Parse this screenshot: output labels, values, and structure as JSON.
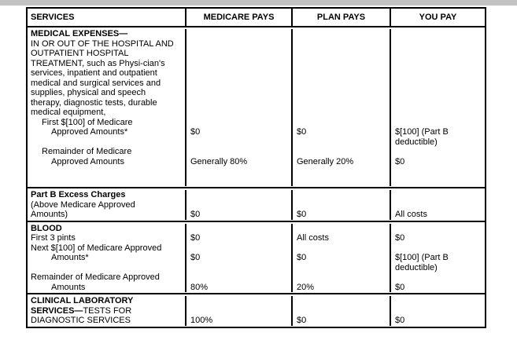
{
  "page": {
    "background": "#ffffff",
    "top_strip_color": "#c2c2c2",
    "border_color": "#000000"
  },
  "table": {
    "headers": [
      {
        "label": "SERVICES"
      },
      {
        "label": "MEDICARE PAYS"
      },
      {
        "label": "PLAN PAYS"
      },
      {
        "label": "YOU PAY"
      }
    ],
    "sections": [
      {
        "id": "medical-expenses",
        "lines": [
          {
            "service": "MEDICAL EXPENSES—",
            "bold": true
          },
          {
            "service": "IN OR OUT OF THE HOSPITAL AND"
          },
          {
            "service": "OUTPATIENT HOSPITAL"
          },
          {
            "service": "TREATMENT, such as Physi-cian's"
          },
          {
            "service": "services, inpatient and outpatient"
          },
          {
            "service": "medical and surgical services and"
          },
          {
            "service": "supplies, physical and speech"
          },
          {
            "service": "therapy, diagnostic tests, durable"
          },
          {
            "service": "medical equipment,"
          },
          {
            "service": "First $[100] of Medicare",
            "indent": 1
          },
          {
            "service": "Approved Amounts*",
            "indent": 2,
            "medicare": "$0",
            "plan": "$0",
            "you": "$[100] (Part B"
          },
          {
            "service": "",
            "you": "deductible)"
          },
          {
            "service": "Remainder of Medicare",
            "indent": 1
          },
          {
            "service": "Approved Amounts",
            "indent": 2,
            "medicare": "Generally 80%",
            "plan": "Generally 20%",
            "you": "$0"
          },
          {
            "service": ""
          },
          {
            "service": ""
          }
        ]
      },
      {
        "id": "part-b-excess-charges",
        "lines": [
          {
            "service": "Part B Excess Charges",
            "bold": true
          },
          {
            "service": "(Above Medicare Approved"
          },
          {
            "service": "Amounts)",
            "medicare": "$0",
            "plan": "$0",
            "you": "All costs"
          }
        ]
      },
      {
        "id": "blood",
        "lines": [
          {
            "service": "BLOOD",
            "bold": true
          },
          {
            "service": "First 3 pints",
            "medicare": "$0",
            "plan": "All costs",
            "you": "$0"
          },
          {
            "service": "Next $[100] of Medicare Approved"
          },
          {
            "service": "Amounts*",
            "indent": 2,
            "medicare": "$0",
            "plan": "$0",
            "you": "$[100] (Part B"
          },
          {
            "service": "",
            "you": "deductible)"
          },
          {
            "service": "Remainder of Medicare Approved"
          },
          {
            "service": "Amounts",
            "indent": 2,
            "medicare": "80%",
            "plan": "20%",
            "you": "$0"
          }
        ]
      },
      {
        "id": "clinical-laboratory",
        "lines": [
          {
            "service": "CLINICAL LABORATORY",
            "bold": true
          },
          {
            "service": "TESTS FOR",
            "boldPrefix": "SERVICES—"
          },
          {
            "service": "DIAGNOSTIC SERVICES",
            "medicare": "100%",
            "plan": "$0",
            "you": "$0"
          }
        ]
      }
    ]
  }
}
